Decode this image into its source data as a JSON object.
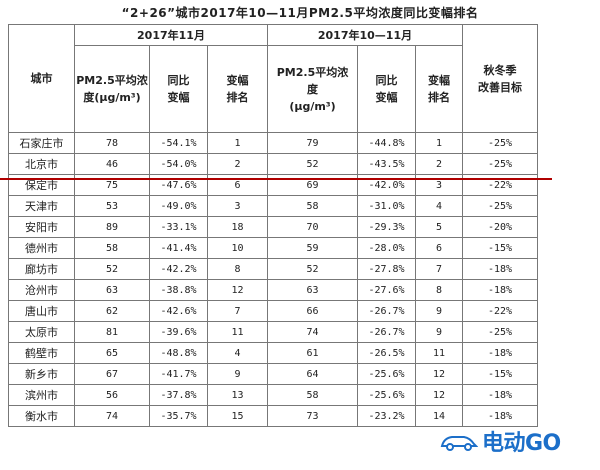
{
  "title": "“2+26”城市2017年10—11月PM2.5平均浓度同比变幅排名",
  "headers": {
    "city": "城市",
    "group_nov": "2017年11月",
    "group_octnov": "2017年10—11月",
    "pm_label_1": "PM2.5平均浓",
    "pm_label_2": "度(μg/m³)",
    "pm_label_b1": "PM2.5平均浓",
    "pm_label_b2": "度",
    "pm_label_b3": "(μg/m³)",
    "yoy_1": "同比",
    "yoy_2": "变幅",
    "rank_1": "变幅",
    "rank_2": "排名",
    "target_1": "秋冬季",
    "target_2": "改善目标"
  },
  "rows": [
    {
      "city": "石家庄市",
      "nov_pm": "78",
      "nov_yoy": "-54.1%",
      "nov_rank": "1",
      "on_pm": "79",
      "on_yoy": "-44.8%",
      "on_rank": "1",
      "target": "-25%"
    },
    {
      "city": "北京市",
      "nov_pm": "46",
      "nov_yoy": "-54.0%",
      "nov_rank": "2",
      "on_pm": "52",
      "on_yoy": "-43.5%",
      "on_rank": "2",
      "target": "-25%"
    },
    {
      "city": "保定市",
      "nov_pm": "75",
      "nov_yoy": "-47.6%",
      "nov_rank": "6",
      "on_pm": "69",
      "on_yoy": "-42.0%",
      "on_rank": "3",
      "target": "-22%"
    },
    {
      "city": "天津市",
      "nov_pm": "53",
      "nov_yoy": "-49.0%",
      "nov_rank": "3",
      "on_pm": "58",
      "on_yoy": "-31.0%",
      "on_rank": "4",
      "target": "-25%"
    },
    {
      "city": "安阳市",
      "nov_pm": "89",
      "nov_yoy": "-33.1%",
      "nov_rank": "18",
      "on_pm": "70",
      "on_yoy": "-29.3%",
      "on_rank": "5",
      "target": "-20%"
    },
    {
      "city": "德州市",
      "nov_pm": "58",
      "nov_yoy": "-41.4%",
      "nov_rank": "10",
      "on_pm": "59",
      "on_yoy": "-28.0%",
      "on_rank": "6",
      "target": "-15%"
    },
    {
      "city": "廊坊市",
      "nov_pm": "52",
      "nov_yoy": "-42.2%",
      "nov_rank": "8",
      "on_pm": "52",
      "on_yoy": "-27.8%",
      "on_rank": "7",
      "target": "-18%"
    },
    {
      "city": "沧州市",
      "nov_pm": "63",
      "nov_yoy": "-38.8%",
      "nov_rank": "12",
      "on_pm": "63",
      "on_yoy": "-27.6%",
      "on_rank": "8",
      "target": "-18%"
    },
    {
      "city": "唐山市",
      "nov_pm": "62",
      "nov_yoy": "-42.6%",
      "nov_rank": "7",
      "on_pm": "66",
      "on_yoy": "-26.7%",
      "on_rank": "9",
      "target": "-22%"
    },
    {
      "city": "太原市",
      "nov_pm": "81",
      "nov_yoy": "-39.6%",
      "nov_rank": "11",
      "on_pm": "74",
      "on_yoy": "-26.7%",
      "on_rank": "9",
      "target": "-25%"
    },
    {
      "city": "鹤壁市",
      "nov_pm": "65",
      "nov_yoy": "-48.8%",
      "nov_rank": "4",
      "on_pm": "61",
      "on_yoy": "-26.5%",
      "on_rank": "11",
      "target": "-18%"
    },
    {
      "city": "新乡市",
      "nov_pm": "67",
      "nov_yoy": "-41.7%",
      "nov_rank": "9",
      "on_pm": "64",
      "on_yoy": "-25.6%",
      "on_rank": "12",
      "target": "-15%"
    },
    {
      "city": "滨州市",
      "nov_pm": "56",
      "nov_yoy": "-37.8%",
      "nov_rank": "13",
      "on_pm": "58",
      "on_yoy": "-25.6%",
      "on_rank": "12",
      "target": "-18%"
    },
    {
      "city": "衡水市",
      "nov_pm": "74",
      "nov_yoy": "-35.7%",
      "nov_rank": "15",
      "on_pm": "73",
      "on_yoy": "-23.2%",
      "on_rank": "14",
      "target": "-18%"
    }
  ],
  "watermark": {
    "text": "电动GO",
    "color": "#1c6fc9"
  },
  "colors": {
    "divider": "#b00000"
  }
}
